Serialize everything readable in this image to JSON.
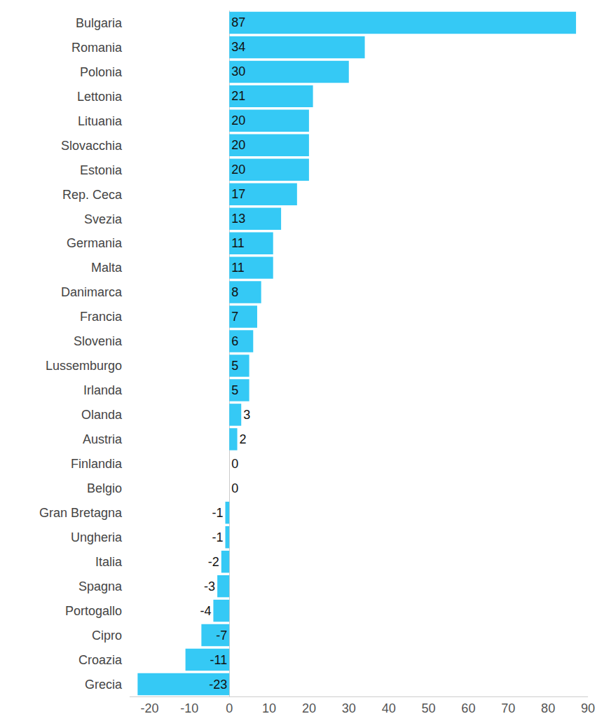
{
  "chart_data": {
    "type": "bar",
    "orientation": "horizontal",
    "categories": [
      "Bulgaria",
      "Romania",
      "Polonia",
      "Lettonia",
      "Lituania",
      "Slovacchia",
      "Estonia",
      "Rep. Ceca",
      "Svezia",
      "Germania",
      "Malta",
      "Danimarca",
      "Francia",
      "Slovenia",
      "Lussemburgo",
      "Irlanda",
      "Olanda",
      "Austria",
      "Finlandia",
      "Belgio",
      "Gran Bretagna",
      "Ungheria",
      "Italia",
      "Spagna",
      "Portogallo",
      "Cipro",
      "Croazia",
      "Grecia"
    ],
    "values": [
      87,
      34,
      30,
      21,
      20,
      20,
      20,
      17,
      13,
      11,
      11,
      8,
      7,
      6,
      5,
      5,
      3,
      2,
      0,
      0,
      -1,
      -1,
      -2,
      -3,
      -4,
      -7,
      -11,
      -23
    ],
    "color": "#35c9f5",
    "xlim": [
      -25,
      90
    ],
    "xticks": [
      -20,
      -10,
      0,
      10,
      20,
      30,
      40,
      50,
      60,
      70,
      80,
      90
    ],
    "grid": false,
    "data_labels": true
  }
}
